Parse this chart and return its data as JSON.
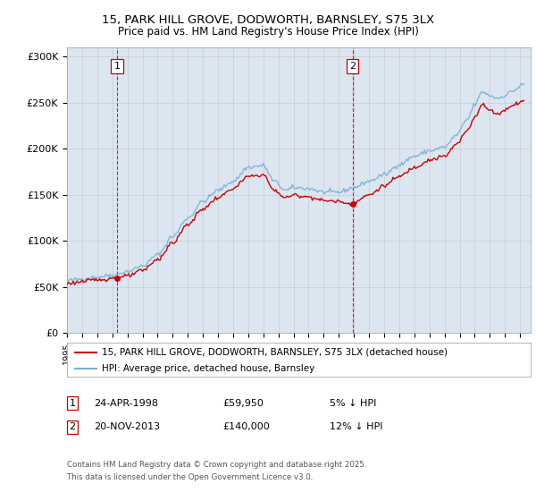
{
  "title_line1": "15, PARK HILL GROVE, DODWORTH, BARNSLEY, S75 3LX",
  "title_line2": "Price paid vs. HM Land Registry's House Price Index (HPI)",
  "ylabel_ticks": [
    "£0",
    "£50K",
    "£100K",
    "£150K",
    "£200K",
    "£250K",
    "£300K"
  ],
  "ytick_values": [
    0,
    50000,
    100000,
    150000,
    200000,
    250000,
    300000
  ],
  "ylim": [
    0,
    310000
  ],
  "xlim_start": 1995.0,
  "xlim_end": 2025.7,
  "sale1_date": 1998.31,
  "sale1_price": 59950,
  "sale2_date": 2013.9,
  "sale2_price": 140000,
  "legend_line1": "15, PARK HILL GROVE, DODWORTH, BARNSLEY, S75 3LX (detached house)",
  "legend_line2": "HPI: Average price, detached house, Barnsley",
  "footer1": "Contains HM Land Registry data © Crown copyright and database right 2025.",
  "footer2": "This data is licensed under the Open Government Licence v3.0.",
  "property_color": "#cc0000",
  "hpi_color": "#7bafd4",
  "background_color": "#dce6f1",
  "plot_bg_color": "#ffffff",
  "sale_marker_color": "#cc0000",
  "vline_color": "#cc0000",
  "grid_color": "#cccccc",
  "box_color": "#cc0000"
}
